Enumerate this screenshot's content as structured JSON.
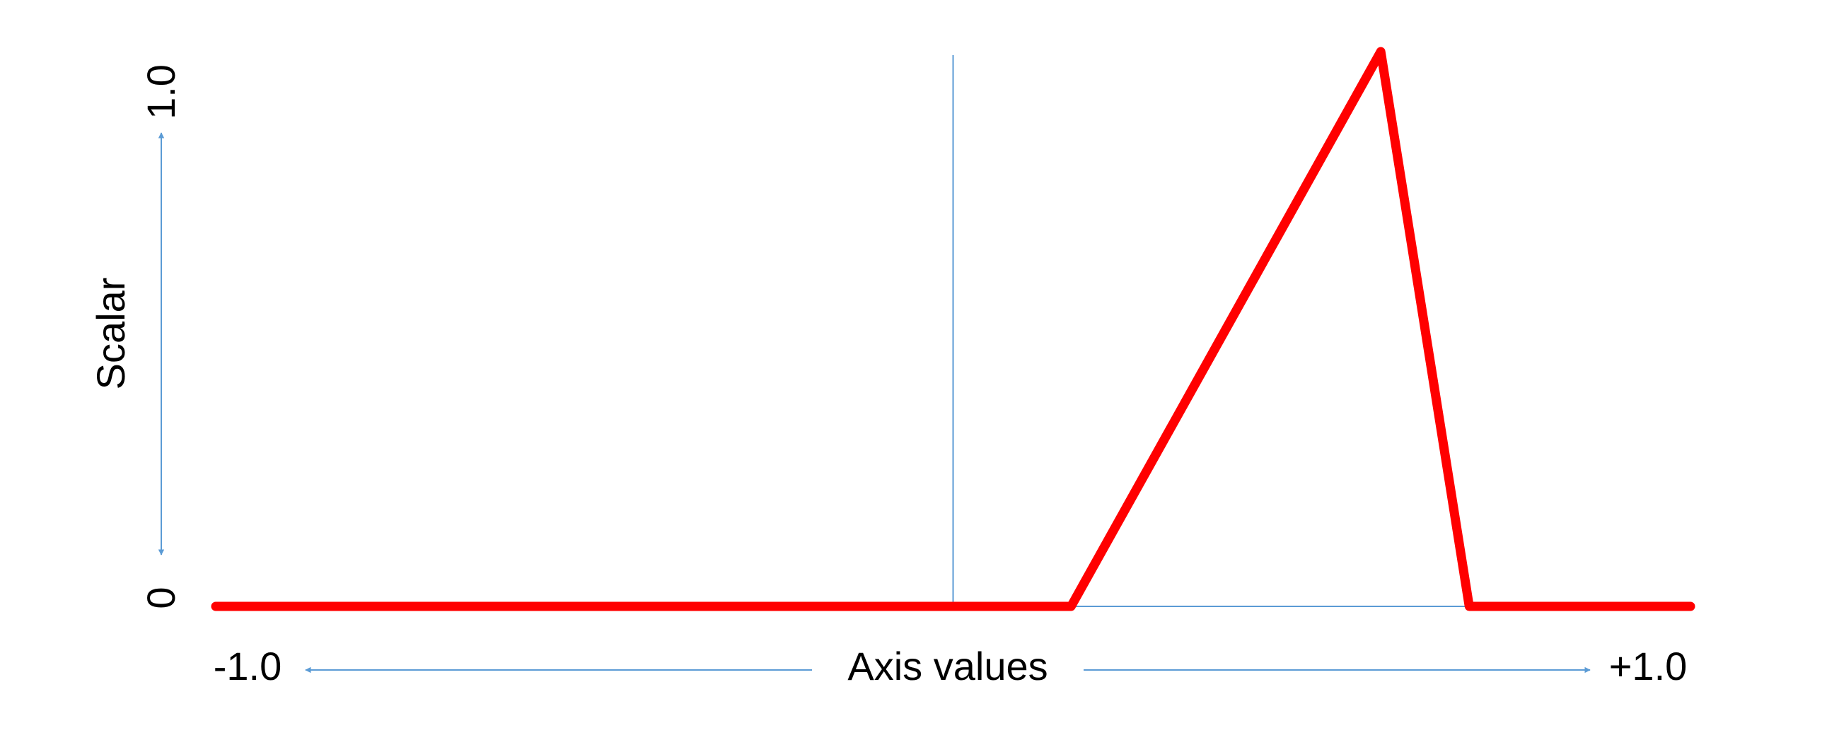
{
  "chart_data": {
    "type": "line",
    "title": "",
    "xlabel": "Axis values",
    "ylabel": "Scalar",
    "xlim": [
      -1.0,
      1.0
    ],
    "ylim": [
      0,
      1.0
    ],
    "x_min_label": "-1.0",
    "x_max_label": "+1.0",
    "y_min_label": "0",
    "y_max_label": "1.0",
    "grid": false,
    "series": [
      {
        "x": [
          -1.0,
          0.16,
          0.58,
          0.7,
          1.0
        ],
        "y": [
          0,
          0,
          1.0,
          0,
          0
        ]
      }
    ],
    "colors": {
      "series": "#ff0000",
      "axis": "#5b9bd5",
      "text": "#000000"
    }
  }
}
